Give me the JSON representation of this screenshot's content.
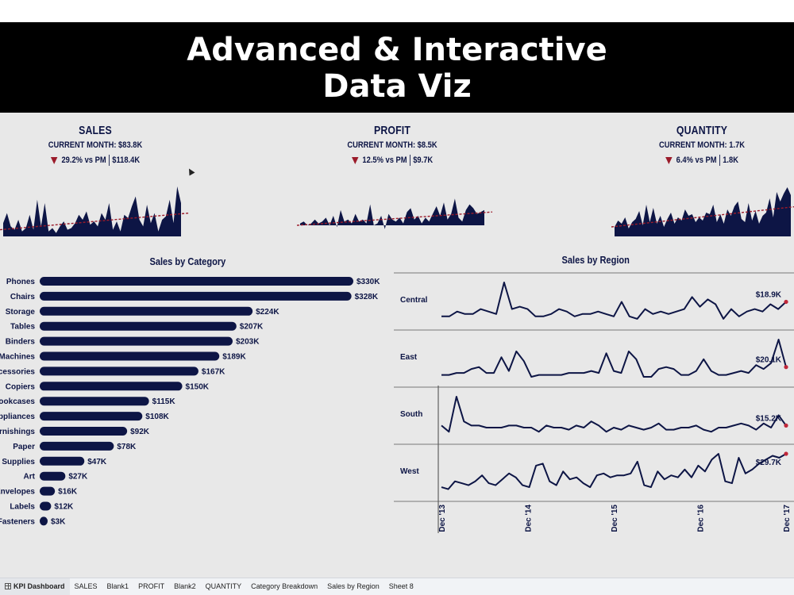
{
  "banner": {
    "line1": "Advanced & Interactive",
    "line2": "Data Viz"
  },
  "kpis": [
    {
      "title": "SALES",
      "current": "CURRENT MONTH: $83.8K",
      "delta": "29.2% vs PM",
      "prev": "$118.4K"
    },
    {
      "title": "PROFIT",
      "current": "CURRENT MONTH: $8.5K",
      "delta": "12.5% vs PM",
      "prev": "$9.7K"
    },
    {
      "title": "QUANTITY",
      "current": "CURRENT MONTH: 1.7K",
      "delta": "6.4% vs PM",
      "prev": "1.8K"
    }
  ],
  "colors": {
    "navy": "#0d1545",
    "trend": "#9b1b2a",
    "background": "#e8e8e8"
  },
  "chart_data": [
    {
      "type": "bar",
      "title": "Sales by Category",
      "categories": [
        "Phones",
        "Chairs",
        "Storage",
        "Tables",
        "Binders",
        "Machines",
        "Accessories",
        "Copiers",
        "Bookcases",
        "Appliances",
        "Furnishings",
        "Paper",
        "Supplies",
        "Art",
        "Envelopes",
        "Labels",
        "Fasteners"
      ],
      "values": [
        330,
        328,
        224,
        207,
        203,
        189,
        167,
        150,
        115,
        108,
        92,
        78,
        47,
        27,
        16,
        12,
        3
      ],
      "labels": [
        "$330K",
        "$328K",
        "$224K",
        "$207K",
        "$203K",
        "$189K",
        "$167K",
        "$150K",
        "$115K",
        "$108K",
        "$92K",
        "$78K",
        "$47K",
        "$27K",
        "$16K",
        "$12K",
        "$3K"
      ],
      "unit": "K USD",
      "orientation": "horizontal"
    },
    {
      "type": "line",
      "title": "Sales by Region",
      "x_ticks": [
        "Dec '13",
        "Dec '14",
        "Dec '15",
        "Dec '16",
        "Dec '17"
      ],
      "series": [
        {
          "name": "Central",
          "end_label": "$18.9K",
          "values": [
            3,
            3,
            5,
            4,
            4,
            6,
            5,
            4,
            17,
            6,
            7,
            6,
            3,
            3,
            4,
            6,
            5,
            3,
            4,
            4,
            5,
            4,
            3,
            9,
            3,
            2,
            6,
            4,
            5,
            4,
            5,
            6,
            11,
            7,
            10,
            8,
            2,
            6,
            3,
            5,
            6,
            5,
            8,
            6,
            9
          ]
        },
        {
          "name": "East",
          "end_label": "$20.1K",
          "values": [
            3,
            3,
            4,
            4,
            6,
            7,
            4,
            4,
            12,
            5,
            15,
            10,
            2,
            3,
            3,
            3,
            3,
            4,
            4,
            4,
            5,
            4,
            14,
            5,
            4,
            15,
            11,
            2,
            2,
            6,
            7,
            6,
            3,
            3,
            5,
            11,
            5,
            3,
            3,
            4,
            5,
            4,
            8,
            6,
            9,
            21,
            7
          ]
        },
        {
          "name": "South",
          "end_label": "$15.2K",
          "values": [
            6,
            3,
            20,
            8,
            6,
            6,
            5,
            5,
            5,
            6,
            6,
            5,
            5,
            3,
            6,
            5,
            5,
            4,
            6,
            5,
            8,
            6,
            3,
            5,
            4,
            6,
            5,
            4,
            5,
            7,
            4,
            4,
            5,
            5,
            6,
            4,
            3,
            5,
            5,
            6,
            7,
            6,
            4,
            7,
            5,
            11,
            6
          ]
        },
        {
          "name": "West",
          "end_label": "$29.7K",
          "values": [
            4,
            3,
            7,
            6,
            5,
            7,
            10,
            6,
            5,
            8,
            11,
            9,
            5,
            4,
            15,
            16,
            7,
            5,
            12,
            8,
            9,
            6,
            4,
            10,
            11,
            9,
            10,
            10,
            11,
            17,
            5,
            4,
            12,
            8,
            10,
            9,
            13,
            9,
            15,
            12,
            18,
            21,
            7,
            6,
            19,
            11,
            13,
            16,
            18,
            20,
            19,
            21
          ]
        }
      ]
    },
    {
      "type": "area",
      "name": "Sales sparkline",
      "values": [
        8,
        14,
        6,
        4,
        10,
        3,
        5,
        13,
        4,
        22,
        6,
        20,
        3,
        5,
        2,
        6,
        9,
        4,
        5,
        8,
        13,
        10,
        15,
        7,
        9,
        6,
        14,
        10,
        20,
        4,
        9,
        3,
        13,
        11,
        18,
        24,
        10,
        6,
        19,
        8,
        14,
        3,
        10,
        12,
        22,
        8,
        30,
        20
      ],
      "trend": [
        4,
        14
      ]
    },
    {
      "type": "area",
      "name": "Profit sparkline",
      "values": [
        1,
        2,
        0,
        1,
        3,
        1,
        2,
        4,
        0,
        5,
        -1,
        8,
        2,
        3,
        1,
        6,
        2,
        3,
        1,
        11,
        0,
        1,
        5,
        -2,
        6,
        3,
        2,
        4,
        1,
        7,
        9,
        3,
        5,
        1,
        4,
        2,
        6,
        10,
        5,
        12,
        3,
        6,
        14,
        4,
        2,
        8,
        11,
        9,
        6,
        7,
        8
      ],
      "trend": [
        0,
        7
      ]
    },
    {
      "type": "area",
      "name": "Quantity sparkline",
      "values": [
        6,
        10,
        8,
        12,
        5,
        9,
        11,
        16,
        7,
        20,
        9,
        18,
        8,
        13,
        6,
        11,
        15,
        8,
        12,
        10,
        17,
        13,
        14,
        9,
        12,
        10,
        15,
        14,
        20,
        9,
        14,
        8,
        17,
        13,
        19,
        22,
        11,
        9,
        21,
        10,
        16,
        8,
        13,
        15,
        24,
        12,
        28,
        22,
        27,
        31,
        26
      ],
      "trend": [
        6,
        19
      ]
    }
  ],
  "tabs": [
    "KPI Dashboard",
    "SALES",
    "Blank1",
    "PROFIT",
    "Blank2",
    "QUANTITY",
    "Category Breakdown",
    "Sales by Region",
    "Sheet 8"
  ]
}
